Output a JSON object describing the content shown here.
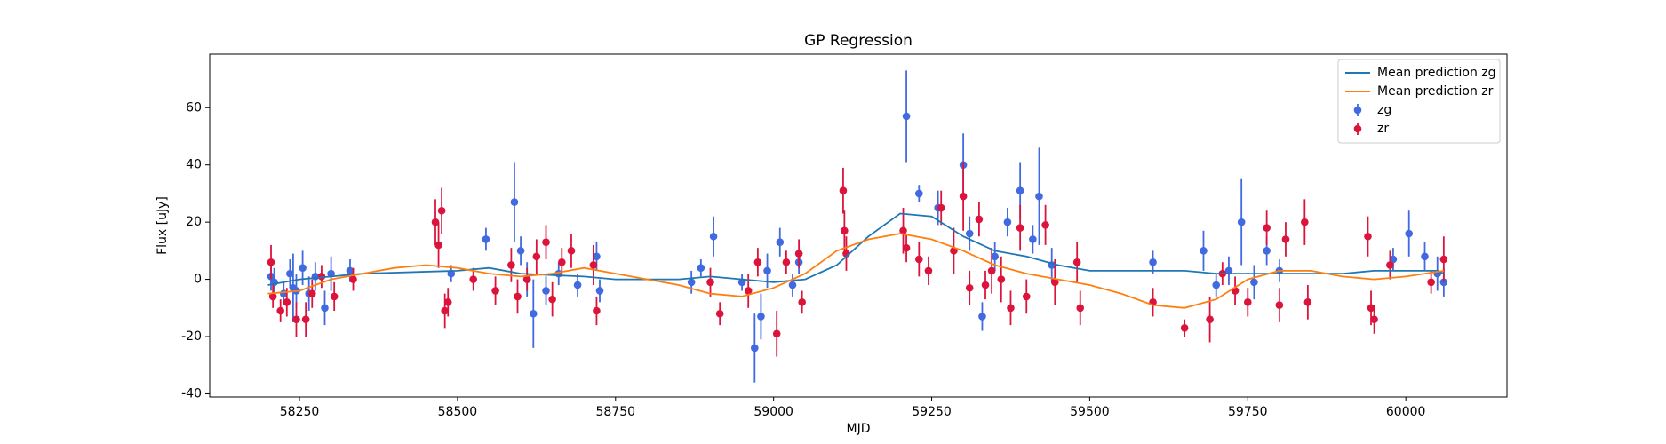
{
  "chart_data": {
    "type": "scatter",
    "title": "GP Regression",
    "x_label": "MJD",
    "y_label": "Flux [uJy]",
    "xlim": [
      58108,
      60160
    ],
    "ylim": [
      -41.1,
      78.7
    ],
    "xticks": [
      58250,
      58500,
      58750,
      59000,
      59250,
      59500,
      59750,
      60000
    ],
    "yticks": [
      -40,
      -20,
      0,
      20,
      40,
      60
    ],
    "legend": "upper right",
    "lines": [
      {
        "name": "Mean prediction zg",
        "color": "#1f77b4",
        "x": [
          58200,
          58250,
          58350,
          58500,
          58550,
          58600,
          58700,
          58750,
          58850,
          58900,
          58950,
          59000,
          59050,
          59100,
          59150,
          59200,
          59250,
          59300,
          59350,
          59400,
          59450,
          59500,
          59550,
          59600,
          59650,
          59700,
          59750,
          59800,
          59850,
          59900,
          59950,
          60000,
          60050,
          60060
        ],
        "values": [
          -2,
          0,
          2,
          3,
          4,
          2,
          1,
          0,
          0,
          1,
          0,
          -1,
          0,
          5,
          15,
          23,
          22,
          15,
          10,
          8,
          5,
          3,
          3,
          3,
          3,
          2,
          2,
          2,
          2,
          2,
          3,
          3,
          3,
          2
        ]
      },
      {
        "name": "Mean prediction zr",
        "color": "#ff7f0e",
        "x": [
          58200,
          58250,
          58300,
          58350,
          58400,
          58450,
          58500,
          58550,
          58600,
          58650,
          58700,
          58750,
          58800,
          58850,
          58900,
          58950,
          59000,
          59050,
          59100,
          59150,
          59200,
          59250,
          59300,
          59350,
          59400,
          59450,
          59500,
          59550,
          59600,
          59650,
          59700,
          59750,
          59800,
          59850,
          59900,
          59950,
          60000,
          60060
        ],
        "values": [
          -5,
          -4,
          0,
          2,
          4,
          5,
          4,
          2,
          1,
          2,
          4,
          2,
          0,
          -2,
          -5,
          -6,
          -3,
          2,
          10,
          14,
          16,
          14,
          10,
          5,
          2,
          0,
          -2,
          -5,
          -9,
          -10,
          -7,
          0,
          3,
          3,
          1,
          0,
          1,
          3
        ]
      }
    ],
    "series": [
      {
        "name": "zg",
        "color": "#4169e1",
        "x": [
          58205,
          58210,
          58225,
          58235,
          58240,
          58245,
          58255,
          58265,
          58275,
          58290,
          58300,
          58330,
          58490,
          58545,
          58590,
          58600,
          58610,
          58620,
          58640,
          58660,
          58690,
          58720,
          58725,
          58870,
          58885,
          58905,
          58950,
          58970,
          58980,
          58990,
          59010,
          59030,
          59040,
          59210,
          59230,
          59260,
          59300,
          59310,
          59330,
          59350,
          59370,
          59390,
          59410,
          59420,
          59440,
          59600,
          59680,
          59700,
          59720,
          59740,
          59760,
          59780,
          59800,
          59980,
          60005,
          60030,
          60050,
          60060
        ],
        "values": [
          1,
          -1,
          -5,
          2,
          -3,
          -4,
          4,
          -5,
          1,
          -10,
          2,
          3,
          2,
          14,
          27,
          10,
          0,
          -12,
          -4,
          2,
          -2,
          8,
          -4,
          -1,
          4,
          15,
          -1,
          -24,
          -13,
          3,
          13,
          -2,
          6,
          57,
          30,
          25,
          40,
          16,
          -13,
          8,
          20,
          31,
          14,
          29,
          5,
          6,
          10,
          -2,
          3,
          20,
          -1,
          10,
          3,
          7,
          16,
          8,
          2,
          -1
        ],
        "errors": [
          5,
          5,
          4,
          5,
          12,
          6,
          6,
          6,
          5,
          6,
          6,
          4,
          3,
          4,
          14,
          5,
          6,
          12,
          5,
          4,
          4,
          5,
          4,
          4,
          3,
          7,
          3,
          12,
          8,
          6,
          5,
          4,
          4,
          16,
          3,
          6,
          11,
          6,
          5,
          5,
          5,
          10,
          5,
          17,
          6,
          4,
          7,
          4,
          5,
          15,
          6,
          5,
          4,
          4,
          8,
          5,
          6,
          5
        ]
      },
      {
        "name": "zr",
        "color": "#dc143c",
        "x": [
          58205,
          58208,
          58220,
          58230,
          58245,
          58260,
          58270,
          58285,
          58305,
          58335,
          58465,
          58470,
          58475,
          58480,
          58485,
          58525,
          58560,
          58585,
          58595,
          58610,
          58625,
          58640,
          58650,
          58665,
          58680,
          58715,
          58720,
          58900,
          58915,
          58960,
          58975,
          59005,
          59020,
          59040,
          59045,
          59110,
          59112,
          59115,
          59205,
          59210,
          59230,
          59245,
          59265,
          59285,
          59300,
          59310,
          59325,
          59335,
          59345,
          59360,
          59375,
          59390,
          59400,
          59430,
          59445,
          59480,
          59485,
          59600,
          59650,
          59690,
          59710,
          59730,
          59750,
          59780,
          59800,
          59810,
          59840,
          59845,
          59940,
          59945,
          59950,
          59975,
          60040,
          60060
        ],
        "values": [
          6,
          -6,
          -11,
          -8,
          -14,
          -14,
          -5,
          1,
          -6,
          0,
          20,
          12,
          24,
          -11,
          -8,
          0,
          -4,
          5,
          -6,
          0,
          8,
          13,
          -7,
          6,
          10,
          5,
          -11,
          -1,
          -12,
          -4,
          6,
          -19,
          6,
          9,
          -8,
          31,
          17,
          9,
          17,
          11,
          7,
          3,
          25,
          10,
          29,
          -3,
          21,
          -2,
          3,
          0,
          -10,
          18,
          -6,
          19,
          -1,
          6,
          -10,
          -8,
          -17,
          -14,
          2,
          -4,
          -8,
          18,
          -9,
          14,
          20,
          -8,
          15,
          -10,
          -14,
          5,
          -1,
          7
        ],
        "errors": [
          6,
          4,
          4,
          5,
          6,
          6,
          5,
          4,
          5,
          4,
          8,
          8,
          8,
          6,
          5,
          4,
          5,
          6,
          6,
          4,
          6,
          6,
          6,
          5,
          6,
          7,
          5,
          5,
          4,
          6,
          5,
          8,
          4,
          5,
          4,
          8,
          7,
          6,
          8,
          5,
          6,
          5,
          6,
          8,
          12,
          6,
          6,
          5,
          8,
          8,
          6,
          8,
          6,
          7,
          8,
          7,
          6,
          5,
          3,
          8,
          4,
          5,
          5,
          6,
          6,
          6,
          8,
          6,
          7,
          6,
          5,
          5,
          4,
          8
        ]
      }
    ]
  }
}
